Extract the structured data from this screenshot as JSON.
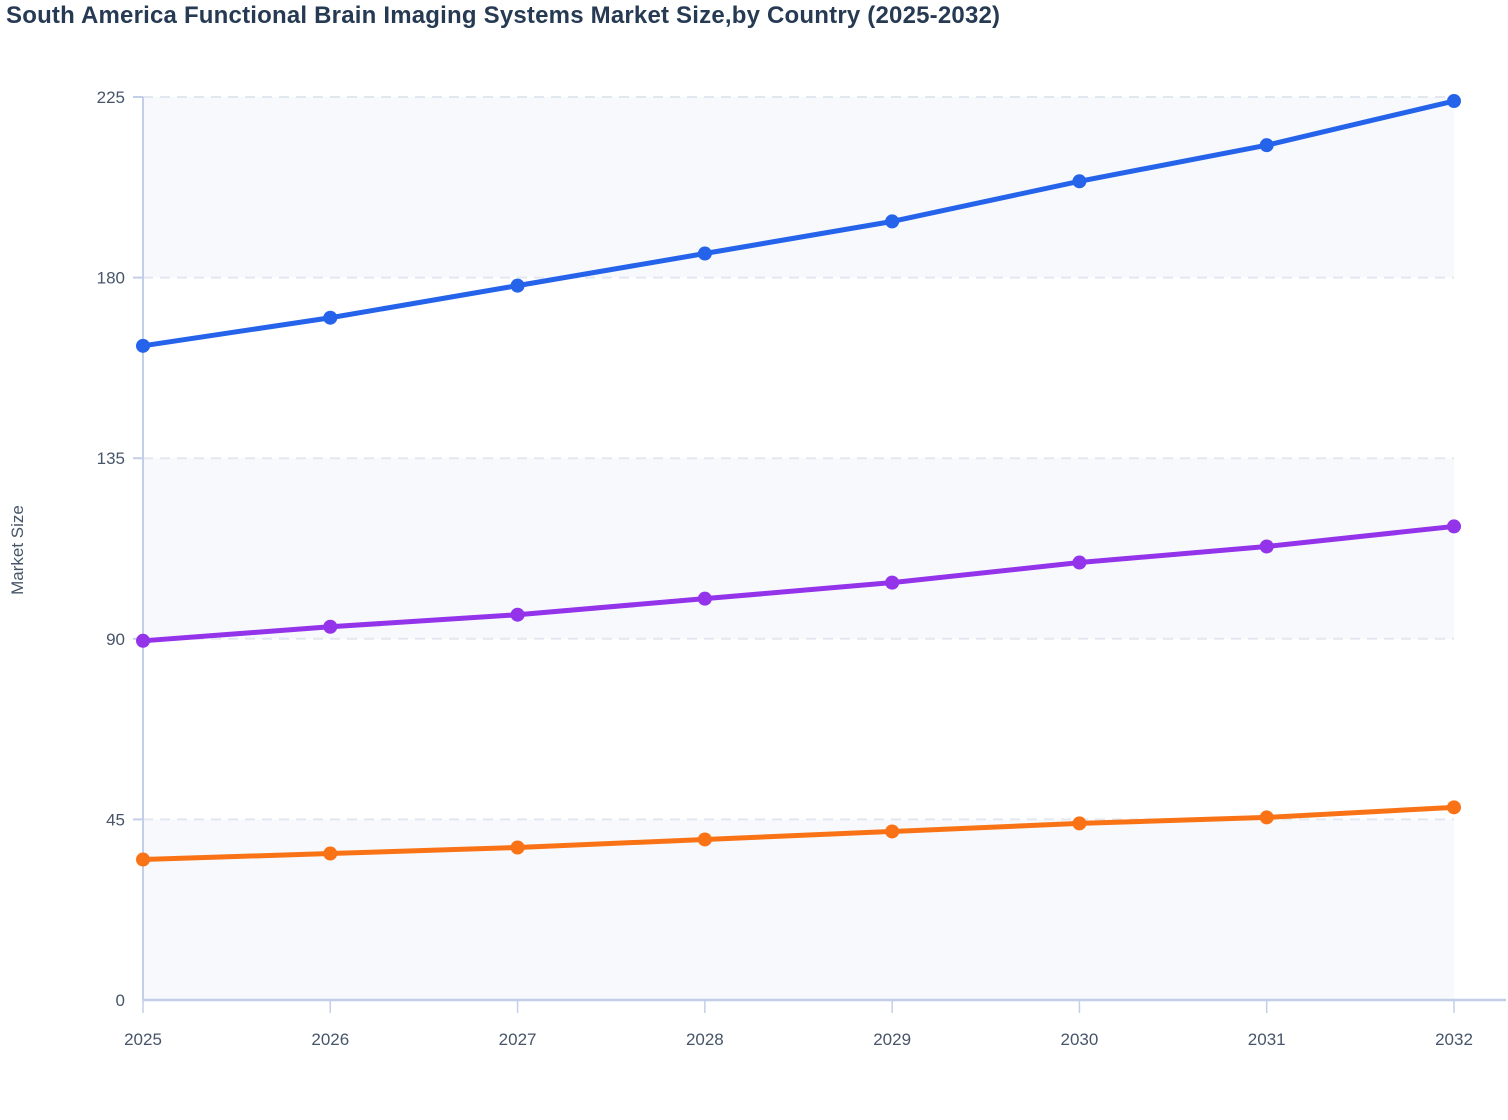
{
  "chart_data": {
    "type": "line",
    "title": "South America Functional Brain Imaging Systems Market Size,by Country (2025-2032)",
    "ylabel": "Market Size",
    "xlabel": "",
    "x": [
      2025,
      2026,
      2027,
      2028,
      2029,
      2030,
      2031,
      2032
    ],
    "ylim": [
      0,
      225
    ],
    "yticks": [
      0,
      45,
      90,
      135,
      180,
      225
    ],
    "grid": "horizontal-dashed",
    "legend_position": "none",
    "band_fill": "alternating horizontal stripes starting light at 0-45",
    "series": [
      {
        "id": "series-blue",
        "color": "#2563eb",
        "marker": "circle",
        "values": [
          163,
          170,
          178,
          186,
          194,
          204,
          213,
          224
        ]
      },
      {
        "id": "series-purple",
        "color": "#9333ea",
        "marker": "circle",
        "values": [
          89.5,
          93,
          96,
          100,
          104,
          109,
          113,
          118
        ]
      },
      {
        "id": "series-orange",
        "color": "#f97316",
        "marker": "circle",
        "values": [
          35,
          36.5,
          38,
          40,
          42,
          44,
          45.5,
          48
        ]
      }
    ],
    "style": {
      "title_color": "#263a53",
      "tick_label_color": "#475569",
      "grid_color": "#e2e8f0",
      "axis_color": "#c3cee9",
      "band_color": "#f7f9fc",
      "background": "#ffffff"
    }
  }
}
